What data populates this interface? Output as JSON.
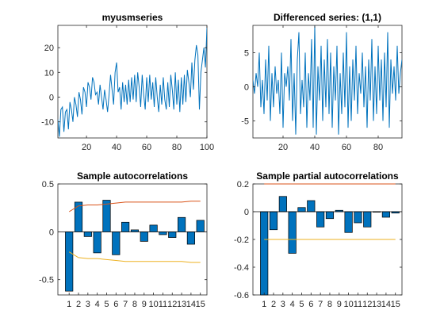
{
  "chart_data": [
    {
      "id": "p1",
      "type": "line",
      "title": "myusmseries",
      "xlim": [
        1,
        100
      ],
      "ylim": [
        -16.5,
        29
      ],
      "xticks": [
        20,
        40,
        60,
        80,
        100
      ],
      "yticks": [
        -10,
        0,
        10,
        20
      ],
      "color": "#0072BD",
      "series": [
        {
          "x": [
            1,
            2,
            3,
            4,
            5,
            6,
            7,
            8,
            9,
            10,
            11,
            12,
            13,
            14,
            15,
            16,
            17,
            18,
            19,
            20,
            21,
            22,
            23,
            24,
            25,
            26,
            27,
            28,
            29,
            30,
            31,
            32,
            33,
            34,
            35,
            36,
            37,
            38,
            39,
            40,
            41,
            42,
            43,
            44,
            45,
            46,
            47,
            48,
            49,
            50,
            51,
            52,
            53,
            54,
            55,
            56,
            57,
            58,
            59,
            60,
            61,
            62,
            63,
            64,
            65,
            66,
            67,
            68,
            69,
            70,
            71,
            72,
            73,
            74,
            75,
            76,
            77,
            78,
            79,
            80,
            81,
            82,
            83,
            84,
            85,
            86,
            87,
            88,
            89,
            90,
            91,
            92,
            93,
            94,
            95,
            96,
            97,
            98,
            99,
            100
          ],
          "y": [
            -9,
            -16,
            -5,
            -4,
            -14,
            -6,
            -5,
            -13,
            -2,
            -5,
            -10,
            0,
            -3,
            -8,
            2,
            -1,
            -7,
            4,
            2,
            -4,
            6,
            4,
            -1,
            8,
            6,
            1,
            2,
            -3,
            5,
            0,
            -5,
            3,
            -1,
            -6,
            1,
            9,
            3,
            -3,
            10,
            14,
            2,
            4,
            -5,
            6,
            -2,
            5,
            -3,
            7,
            -2,
            8,
            -1,
            9,
            -2,
            10,
            4,
            -4,
            9,
            1,
            -5,
            8,
            -2,
            9,
            -1,
            6,
            -4,
            8,
            0,
            -6,
            5,
            -3,
            8,
            -1,
            -5,
            6,
            -4,
            9,
            3,
            -5,
            10,
            -3,
            7,
            -6,
            8,
            -3,
            9,
            -2,
            11,
            6,
            0,
            14,
            3,
            15,
            21,
            17,
            -5,
            10,
            15,
            20,
            12,
            28
          ]
        }
      ]
    },
    {
      "id": "p2",
      "type": "line",
      "title": "Differenced series: (1,1)",
      "xlim": [
        1,
        95
      ],
      "ylim": [
        -7.5,
        9
      ],
      "xticks": [
        20,
        40,
        60,
        80
      ],
      "yticks": [
        -5,
        0,
        5
      ],
      "color": "#0072BD",
      "series": [
        {
          "x": [
            1,
            2,
            3,
            4,
            5,
            6,
            7,
            8,
            9,
            10,
            11,
            12,
            13,
            14,
            15,
            16,
            17,
            18,
            19,
            20,
            21,
            22,
            23,
            24,
            25,
            26,
            27,
            28,
            29,
            30,
            31,
            32,
            33,
            34,
            35,
            36,
            37,
            38,
            39,
            40,
            41,
            42,
            43,
            44,
            45,
            46,
            47,
            48,
            49,
            50,
            51,
            52,
            53,
            54,
            55,
            56,
            57,
            58,
            59,
            60,
            61,
            62,
            63,
            64,
            65,
            66,
            67,
            68,
            69,
            70,
            71,
            72,
            73,
            74,
            75,
            76,
            77,
            78,
            79,
            80,
            81,
            82,
            83,
            84,
            85,
            86,
            87,
            88,
            89,
            90,
            91,
            92,
            93,
            94,
            95
          ],
          "y": [
            1,
            -1,
            2,
            0,
            5,
            -3,
            1,
            -4,
            4,
            -2,
            6,
            -5,
            2,
            -3,
            3,
            -1,
            1,
            -4,
            5,
            -6,
            2,
            0,
            3,
            -2,
            7,
            -5,
            2,
            -7,
            4,
            8,
            -4,
            1,
            -3,
            5,
            -6,
            2,
            -2,
            7,
            -6,
            9,
            -7,
            3,
            -2,
            6,
            -5,
            4,
            -3,
            7,
            -4,
            5,
            -6,
            3,
            -2,
            6,
            -7,
            2,
            -4,
            5,
            -3,
            8,
            -6,
            3,
            -5,
            4,
            -2,
            6,
            -4,
            2,
            -1,
            5,
            -3,
            3,
            -6,
            4,
            -2,
            7,
            -5,
            3,
            -4,
            6,
            -2,
            4,
            -5,
            5,
            -3,
            8,
            -6,
            4,
            -1,
            3,
            -2,
            6,
            -1,
            2,
            4
          ]
        }
      ]
    },
    {
      "id": "p3",
      "type": "bar",
      "title": "Sample autocorrelations",
      "categories": [
        "1",
        "2",
        "3",
        "4",
        "5",
        "6",
        "7",
        "8",
        "9",
        "10",
        "11",
        "12",
        "13",
        "14",
        "15"
      ],
      "values": [
        -0.62,
        0.31,
        -0.05,
        -0.22,
        0.33,
        -0.24,
        0.1,
        0.02,
        -0.1,
        0.07,
        -0.03,
        -0.06,
        0.15,
        -0.13,
        0.12
      ],
      "ylim": [
        -0.66,
        0.5
      ],
      "yticks": [
        -0.5,
        0,
        0.5
      ],
      "bar_color": "#0072BD",
      "upper_bound": [
        0.21,
        0.27,
        0.28,
        0.28,
        0.29,
        0.3,
        0.31,
        0.31,
        0.31,
        0.31,
        0.31,
        0.31,
        0.31,
        0.32,
        0.32
      ],
      "lower_bound": [
        -0.21,
        -0.27,
        -0.28,
        -0.28,
        -0.29,
        -0.3,
        -0.31,
        -0.31,
        -0.31,
        -0.31,
        -0.31,
        -0.31,
        -0.31,
        -0.32,
        -0.32
      ],
      "upper_color": "#D95319",
      "lower_color": "#EDB120"
    },
    {
      "id": "p4",
      "type": "bar",
      "title": "Sample partial autocorrelations",
      "categories": [
        "1",
        "2",
        "3",
        "4",
        "5",
        "6",
        "7",
        "8",
        "9",
        "10",
        "11",
        "12",
        "13",
        "14",
        "15"
      ],
      "values": [
        -0.6,
        -0.13,
        0.11,
        -0.3,
        0.03,
        0.08,
        -0.11,
        -0.05,
        0.01,
        -0.15,
        -0.08,
        -0.11,
        0.0,
        -0.04,
        -0.01
      ],
      "ylim": [
        -0.6,
        0.2
      ],
      "yticks": [
        -0.6,
        -0.4,
        -0.2,
        0,
        0.2
      ],
      "ytick_labels": [
        "-0.6",
        "-0.4",
        "-0.2",
        "0",
        "0.2"
      ],
      "bar_color": "#0072BD",
      "upper_bound": 0.2,
      "lower_bound": -0.2,
      "upper_color": "#D95319",
      "lower_color": "#EDB120"
    }
  ]
}
